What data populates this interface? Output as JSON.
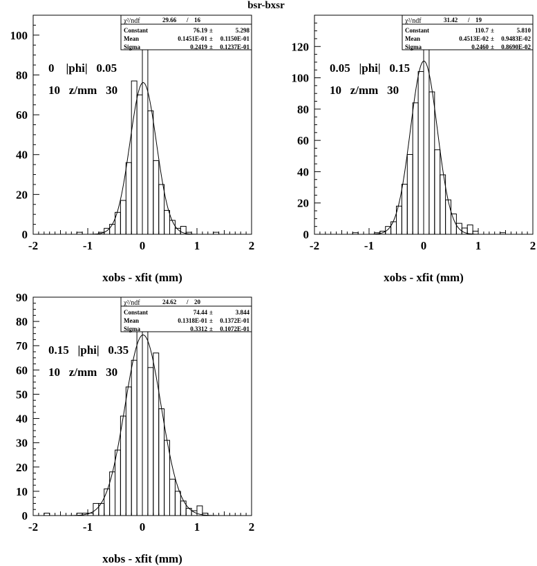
{
  "page_title": "bsr-bxsr",
  "chart_data": [
    {
      "type": "bar",
      "xlabel": "xobs - xfit (mm)",
      "ylabel": "",
      "xlim": [
        -2,
        2
      ],
      "ylim": [
        0,
        110
      ],
      "xticks": [
        -2,
        -1,
        0,
        1,
        2
      ],
      "yticks": [
        0,
        20,
        40,
        60,
        80,
        100
      ],
      "bin_width": 0.1,
      "annotation_lines": [
        "0    |phi|   0.05",
        "10   z/mm   30"
      ],
      "stats": {
        "chi2_label": "χ²/ndf",
        "chi2_value": "29.66",
        "ndf": "16",
        "rows": [
          {
            "label": "Constant",
            "value": "76.19",
            "error": "5.298"
          },
          {
            "label": "Mean",
            "value": "0.1451E-01",
            "error": "0.1150E-01"
          },
          {
            "label": "Sigma",
            "value": "0.2419",
            "error": "0.1237E-01"
          }
        ]
      },
      "fit": {
        "constant": 76.19,
        "mean": 0.01451,
        "sigma": 0.2419
      },
      "bins": [
        {
          "x": -1.15,
          "y": 1
        },
        {
          "x": -0.75,
          "y": 1
        },
        {
          "x": -0.65,
          "y": 3
        },
        {
          "x": -0.55,
          "y": 5
        },
        {
          "x": -0.45,
          "y": 11
        },
        {
          "x": -0.35,
          "y": 17
        },
        {
          "x": -0.25,
          "y": 36
        },
        {
          "x": -0.15,
          "y": 77
        },
        {
          "x": -0.05,
          "y": 70
        },
        {
          "x": 0.05,
          "y": 98
        },
        {
          "x": 0.15,
          "y": 62
        },
        {
          "x": 0.25,
          "y": 37
        },
        {
          "x": 0.35,
          "y": 25
        },
        {
          "x": 0.45,
          "y": 12
        },
        {
          "x": 0.55,
          "y": 7
        },
        {
          "x": 0.65,
          "y": 3
        },
        {
          "x": 0.75,
          "y": 4
        },
        {
          "x": 0.85,
          "y": 1
        },
        {
          "x": 1.35,
          "y": 1
        }
      ]
    },
    {
      "type": "bar",
      "xlabel": "xobs - xfit (mm)",
      "ylabel": "",
      "xlim": [
        -2,
        2
      ],
      "ylim": [
        0,
        140
      ],
      "xticks": [
        -2,
        -1,
        0,
        1,
        2
      ],
      "yticks": [
        0,
        20,
        40,
        60,
        80,
        100,
        120
      ],
      "bin_width": 0.1,
      "annotation_lines": [
        "0.05   |phi|   0.15",
        "10   z/mm   30"
      ],
      "stats": {
        "chi2_label": "χ²/ndf",
        "chi2_value": "31.42",
        "ndf": "19",
        "rows": [
          {
            "label": "Constant",
            "value": "110.7",
            "error": "5.810"
          },
          {
            "label": "Mean",
            "value": "0.4513E-02",
            "error": "0.9483E-02"
          },
          {
            "label": "Sigma",
            "value": "0.2460",
            "error": "0.8690E-02"
          }
        ]
      },
      "fit": {
        "constant": 110.7,
        "mean": 0.004513,
        "sigma": 0.246
      },
      "bins": [
        {
          "x": -1.25,
          "y": 1
        },
        {
          "x": -0.85,
          "y": 1
        },
        {
          "x": -0.75,
          "y": 2
        },
        {
          "x": -0.65,
          "y": 5
        },
        {
          "x": -0.55,
          "y": 8
        },
        {
          "x": -0.45,
          "y": 18
        },
        {
          "x": -0.35,
          "y": 32
        },
        {
          "x": -0.25,
          "y": 51
        },
        {
          "x": -0.15,
          "y": 84
        },
        {
          "x": -0.05,
          "y": 104
        },
        {
          "x": 0.05,
          "y": 124
        },
        {
          "x": 0.15,
          "y": 91
        },
        {
          "x": 0.25,
          "y": 54
        },
        {
          "x": 0.35,
          "y": 38
        },
        {
          "x": 0.45,
          "y": 22
        },
        {
          "x": 0.55,
          "y": 13
        },
        {
          "x": 0.65,
          "y": 7
        },
        {
          "x": 0.75,
          "y": 4
        },
        {
          "x": 0.85,
          "y": 6
        },
        {
          "x": 0.95,
          "y": 2
        },
        {
          "x": 1.45,
          "y": 1
        }
      ]
    },
    {
      "type": "bar",
      "xlabel": "xobs - xfit (mm)",
      "ylabel": "",
      "xlim": [
        -2,
        2
      ],
      "ylim": [
        0,
        90
      ],
      "xticks": [
        -2,
        -1,
        0,
        1,
        2
      ],
      "yticks": [
        0,
        10,
        20,
        30,
        40,
        50,
        60,
        70,
        80,
        90
      ],
      "bin_width": 0.1,
      "annotation_lines": [
        "0.15   |phi|   0.35",
        "10   z/mm   30"
      ],
      "stats": {
        "chi2_label": "χ²/ndf",
        "chi2_value": "24.62",
        "ndf": "20",
        "rows": [
          {
            "label": "Constant",
            "value": "74.44",
            "error": "3.844"
          },
          {
            "label": "Mean",
            "value": "0.1318E-01",
            "error": "0.1372E-01"
          },
          {
            "label": "Sigma",
            "value": "0.3312",
            "error": "0.1072E-01"
          }
        ]
      },
      "fit": {
        "constant": 74.44,
        "mean": 0.01318,
        "sigma": 0.3312
      },
      "bins": [
        {
          "x": -1.75,
          "y": 1
        },
        {
          "x": -1.15,
          "y": 1
        },
        {
          "x": -1.05,
          "y": 1
        },
        {
          "x": -0.95,
          "y": 1
        },
        {
          "x": -0.85,
          "y": 5
        },
        {
          "x": -0.75,
          "y": 5
        },
        {
          "x": -0.65,
          "y": 11
        },
        {
          "x": -0.55,
          "y": 18
        },
        {
          "x": -0.45,
          "y": 27
        },
        {
          "x": -0.35,
          "y": 41
        },
        {
          "x": -0.25,
          "y": 53
        },
        {
          "x": -0.15,
          "y": 64
        },
        {
          "x": -0.05,
          "y": 77
        },
        {
          "x": 0.05,
          "y": 81
        },
        {
          "x": 0.15,
          "y": 61
        },
        {
          "x": 0.25,
          "y": 67
        },
        {
          "x": 0.35,
          "y": 44
        },
        {
          "x": 0.45,
          "y": 31
        },
        {
          "x": 0.55,
          "y": 15
        },
        {
          "x": 0.65,
          "y": 10
        },
        {
          "x": 0.75,
          "y": 6
        },
        {
          "x": 0.85,
          "y": 3
        },
        {
          "x": 0.95,
          "y": 2
        },
        {
          "x": 1.05,
          "y": 4
        },
        {
          "x": 1.15,
          "y": 1
        }
      ]
    }
  ]
}
